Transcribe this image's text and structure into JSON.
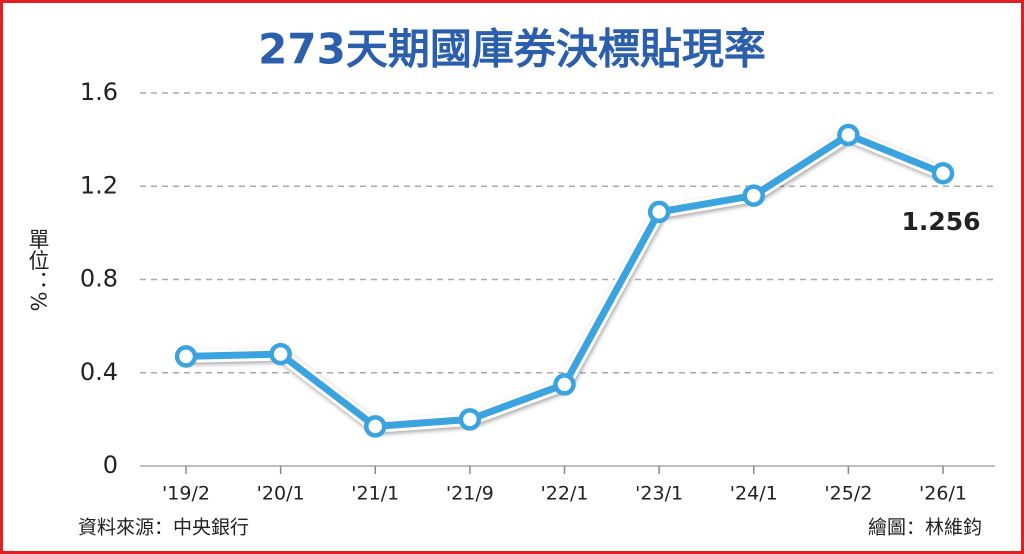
{
  "chart_data": {
    "type": "line",
    "title": "273天期國庫券決標貼現率",
    "ylabel": "單位：%",
    "categories": [
      "'19/2",
      "'20/1",
      "'21/1",
      "'21/9",
      "'22/1",
      "'23/1",
      "'24/1",
      "'25/2",
      "'26/1"
    ],
    "series": [
      {
        "name": "273天期國庫券決標貼現率",
        "color": "#3aa3e0",
        "values": [
          0.47,
          0.48,
          0.17,
          0.2,
          0.35,
          1.09,
          1.16,
          1.42,
          1.256
        ]
      }
    ],
    "ylim": [
      0,
      1.6
    ],
    "yticks": [
      0,
      0.4,
      0.8,
      1.2,
      1.6
    ],
    "grid": true,
    "source": "資料來源：中央銀行",
    "credit": "繪圖：林維鈞"
  }
}
